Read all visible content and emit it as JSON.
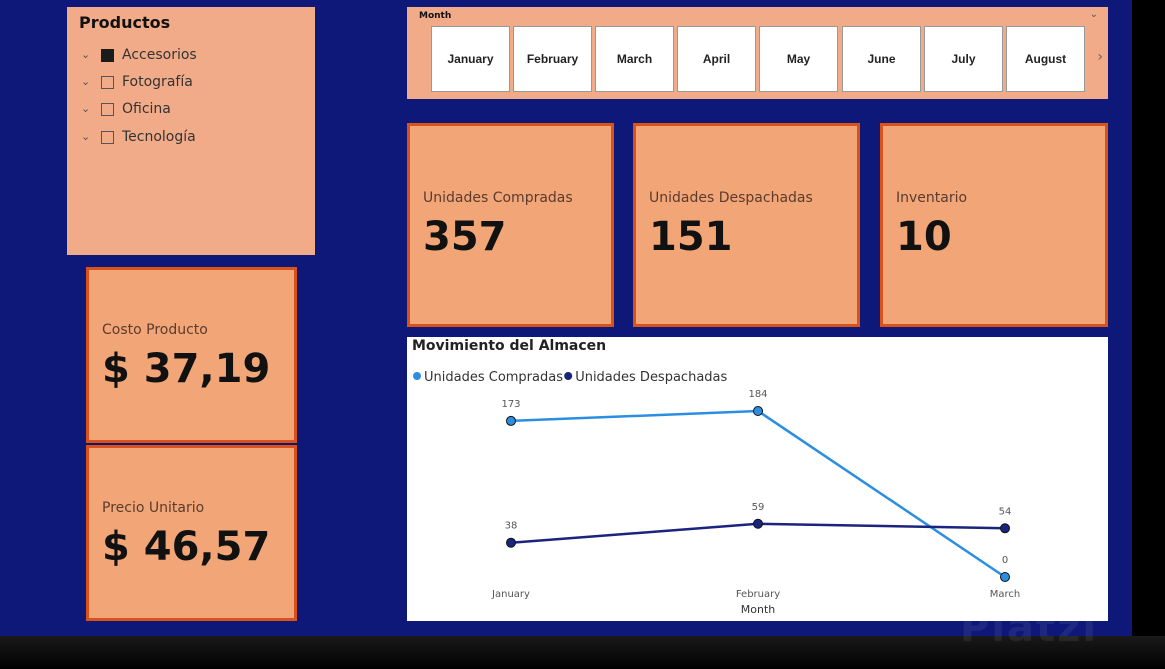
{
  "productos_slicer": {
    "title": "Productos",
    "items": [
      {
        "label": "Accesorios",
        "checked": true
      },
      {
        "label": "Fotografía",
        "checked": false
      },
      {
        "label": "Oficina",
        "checked": false
      },
      {
        "label": "Tecnología",
        "checked": false
      }
    ]
  },
  "month_slicer": {
    "title": "Month",
    "months": [
      "January",
      "February",
      "March",
      "April",
      "May",
      "June",
      "July",
      "August"
    ]
  },
  "cards": {
    "unidades_compradas": {
      "label": "Unidades Compradas",
      "value": "357"
    },
    "unidades_despachadas": {
      "label": "Unidades Despachadas",
      "value": "151"
    },
    "inventario": {
      "label": "Inventario",
      "value": "10"
    },
    "costo_producto": {
      "label": "Costo Producto",
      "value": "$ 37,19"
    },
    "precio_unitario": {
      "label": "Precio Unitario",
      "value": "$ 46,57"
    }
  },
  "colors": {
    "canvas": "#0e1878",
    "card_fill": "#f2a677",
    "card_border": "#d9521a",
    "series_compradas": "#2b8ee0",
    "series_despachadas": "#1a237e"
  },
  "chart_data": {
    "type": "line",
    "title": "Movimiento del Almacen",
    "xlabel": "Month",
    "ylabel": "",
    "categories": [
      "January",
      "February",
      "March"
    ],
    "series": [
      {
        "name": "Unidades Compradas",
        "values": [
          173,
          184,
          0
        ]
      },
      {
        "name": "Unidades Despachadas",
        "values": [
          38,
          59,
          54
        ]
      }
    ],
    "legend": "top-left",
    "grid": false,
    "ylim": [
      0,
      184
    ]
  },
  "watermark": "Platzi"
}
